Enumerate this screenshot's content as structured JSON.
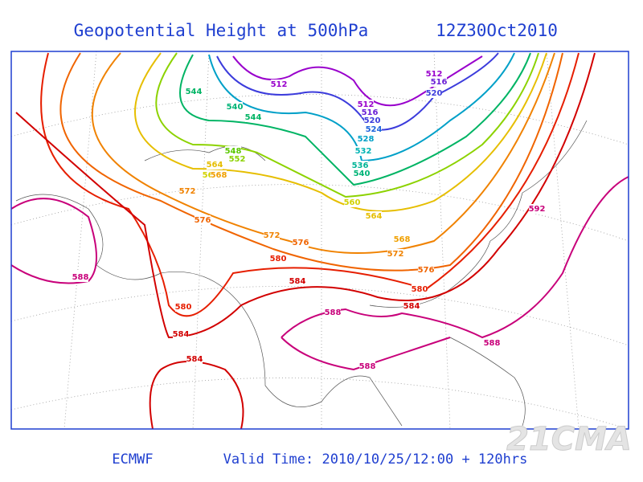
{
  "header": {
    "title": "Geopotential Height at 500hPa",
    "time": "12Z30Oct2010"
  },
  "footer": {
    "source": "ECMWF",
    "valid": "Valid Time: 2010/10/25/12:00 + 120hrs",
    "watermark": "21CMA"
  },
  "contour_labels": [
    {
      "text": "512",
      "color": "#9900cc"
    },
    {
      "text": "512",
      "color": "#9900cc"
    },
    {
      "text": "516",
      "color": "#6a1fd6"
    },
    {
      "text": "520",
      "color": "#3c3cdc"
    },
    {
      "text": "512",
      "color": "#9900cc"
    },
    {
      "text": "516",
      "color": "#6a1fd6"
    },
    {
      "text": "520",
      "color": "#3c3cdc"
    },
    {
      "text": "524",
      "color": "#1e64dc"
    },
    {
      "text": "528",
      "color": "#00a0c8"
    },
    {
      "text": "532",
      "color": "#00b4b4"
    },
    {
      "text": "536",
      "color": "#00b496"
    },
    {
      "text": "540",
      "color": "#00b478"
    },
    {
      "text": "544",
      "color": "#00b464"
    },
    {
      "text": "540",
      "color": "#00b478"
    },
    {
      "text": "544",
      "color": "#00b464"
    },
    {
      "text": "548",
      "color": "#5ac800"
    },
    {
      "text": "552",
      "color": "#8cd200"
    },
    {
      "text": "560",
      "color": "#d2d200"
    },
    {
      "text": "564",
      "color": "#e6be00"
    },
    {
      "text": "568",
      "color": "#f0a000"
    },
    {
      "text": "572",
      "color": "#f08200"
    },
    {
      "text": "576",
      "color": "#f06400"
    },
    {
      "text": "572",
      "color": "#f08200"
    },
    {
      "text": "576",
      "color": "#f06400"
    },
    {
      "text": "568",
      "color": "#f0a000"
    },
    {
      "text": "572",
      "color": "#f08200"
    },
    {
      "text": "576",
      "color": "#f06400"
    },
    {
      "text": "580",
      "color": "#e61e00"
    },
    {
      "text": "584",
      "color": "#d20000"
    },
    {
      "text": "580",
      "color": "#e61e00"
    },
    {
      "text": "584",
      "color": "#d20000"
    },
    {
      "text": "580",
      "color": "#e61e00"
    },
    {
      "text": "584",
      "color": "#d20000"
    },
    {
      "text": "584",
      "color": "#d20000"
    },
    {
      "text": "588",
      "color": "#c8007a"
    },
    {
      "text": "588",
      "color": "#c8007a"
    },
    {
      "text": "588",
      "color": "#c8007a"
    },
    {
      "text": "588",
      "color": "#c8007a"
    },
    {
      "text": "592",
      "color": "#c8007a"
    },
    {
      "text": "560",
      "color": "#d2d200"
    },
    {
      "text": "564",
      "color": "#e6be00"
    }
  ]
}
